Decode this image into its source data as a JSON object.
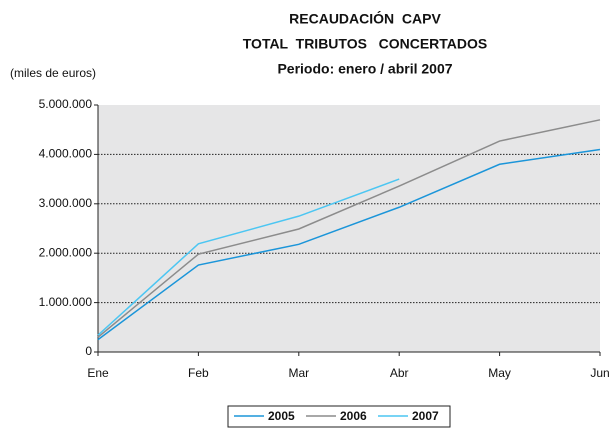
{
  "chart_data": {
    "type": "line",
    "title": [
      "RECAUDACIÓN  CAPV",
      "TOTAL  TRIBUTOS   CONCERTADOS"
    ],
    "subtitle": "Periodo: enero / abril 2007",
    "y_label": "(miles de euros)",
    "categories": [
      "Ene",
      "Feb",
      "Mar",
      "Abr",
      "May",
      "Jun"
    ],
    "series": [
      {
        "name": "2005",
        "color": "#1b95d9",
        "values": [
          250000,
          1760000,
          2180000,
          2930000,
          3800000,
          4100000
        ]
      },
      {
        "name": "2006",
        "color": "#8c8c8c",
        "values": [
          300000,
          1980000,
          2490000,
          3360000,
          4270000,
          4700000
        ]
      },
      {
        "name": "2007",
        "color": "#4cc6f2",
        "values": [
          340000,
          2190000,
          2750000,
          3500000,
          null,
          null
        ]
      }
    ],
    "ylim": [
      0,
      5000000
    ],
    "yticks": [
      0,
      {
        "value": 1000000,
        "label": "1.000.000"
      },
      {
        "value": 2000000,
        "label": "2.000.000"
      },
      {
        "value": 3000000,
        "label": "3.000.000"
      },
      {
        "value": 4000000,
        "label": "4.000.000"
      },
      {
        "value": 5000000,
        "label": "5.000.000"
      }
    ],
    "grid": true,
    "legend": "bottom"
  }
}
